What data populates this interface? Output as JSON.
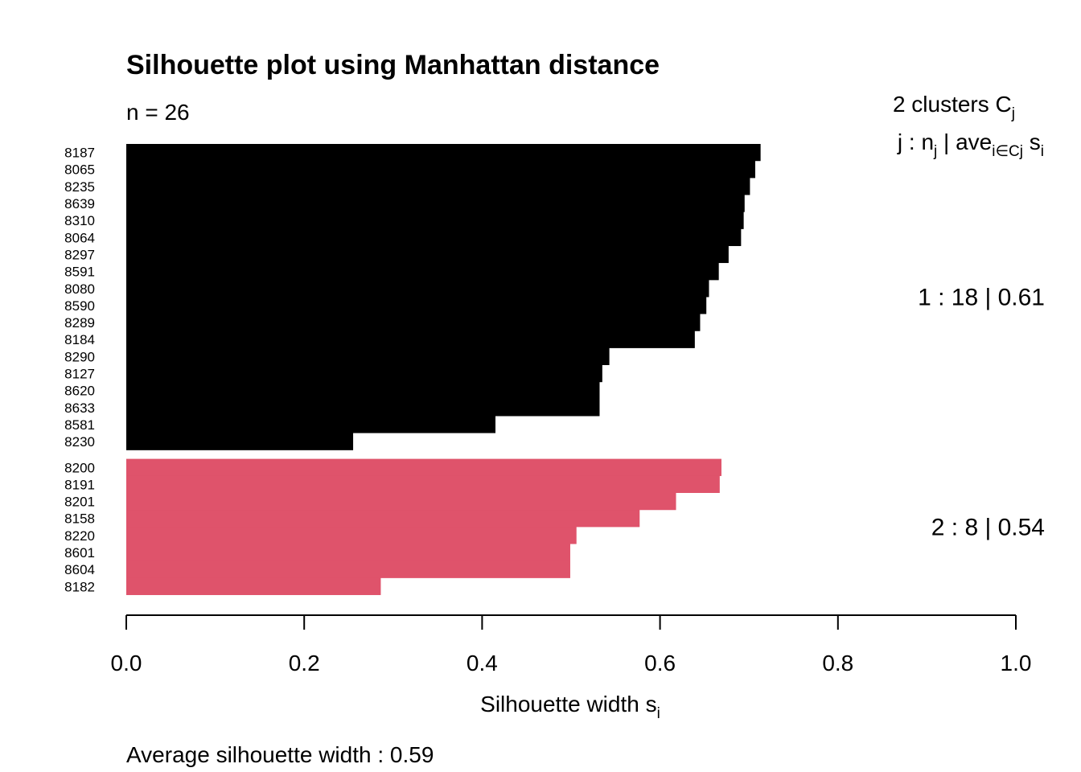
{
  "chart_data": {
    "type": "bar",
    "orientation": "horizontal",
    "title": "Silhouette plot using  Manhattan  distance",
    "n_label": "n = 26",
    "legend_header": {
      "line1_main": "2  clusters  C",
      "line1_sub": "j",
      "line2_a": "j :  n",
      "line2_a_sub": "j",
      "line2_b": " | ave",
      "line2_b_sub": "i∈Cj",
      "line2_c": "  s",
      "line2_c_sub": "i"
    },
    "xlabel_main": "Silhouette width s",
    "xlabel_sub": "i",
    "xlim": [
      0,
      1
    ],
    "x_ticks": [
      "0.0",
      "0.2",
      "0.4",
      "0.6",
      "0.8",
      "1.0"
    ],
    "x_tick_values": [
      0,
      0.2,
      0.4,
      0.6,
      0.8,
      1.0
    ],
    "summary": "Average silhouette width :  0.59",
    "clusters": [
      {
        "id": 1,
        "color": "#000000",
        "summary": "1 :   18  |  0.61",
        "labels": [
          "8187",
          "8065",
          "8235",
          "8639",
          "8310",
          "8064",
          "8297",
          "8591",
          "8080",
          "8590",
          "8289",
          "8184",
          "8290",
          "8127",
          "8620",
          "8633",
          "8581",
          "8230"
        ],
        "values": [
          0.713,
          0.707,
          0.701,
          0.695,
          0.694,
          0.691,
          0.677,
          0.666,
          0.655,
          0.652,
          0.645,
          0.639,
          0.543,
          0.535,
          0.532,
          0.532,
          0.415,
          0.255
        ]
      },
      {
        "id": 2,
        "color": "#df536b",
        "summary": "2 :   8  |  0.54",
        "labels": [
          "8200",
          "8191",
          "8201",
          "8158",
          "8220",
          "8601",
          "8604",
          "8182"
        ],
        "values": [
          0.669,
          0.667,
          0.618,
          0.577,
          0.506,
          0.499,
          0.499,
          0.286
        ]
      }
    ]
  }
}
